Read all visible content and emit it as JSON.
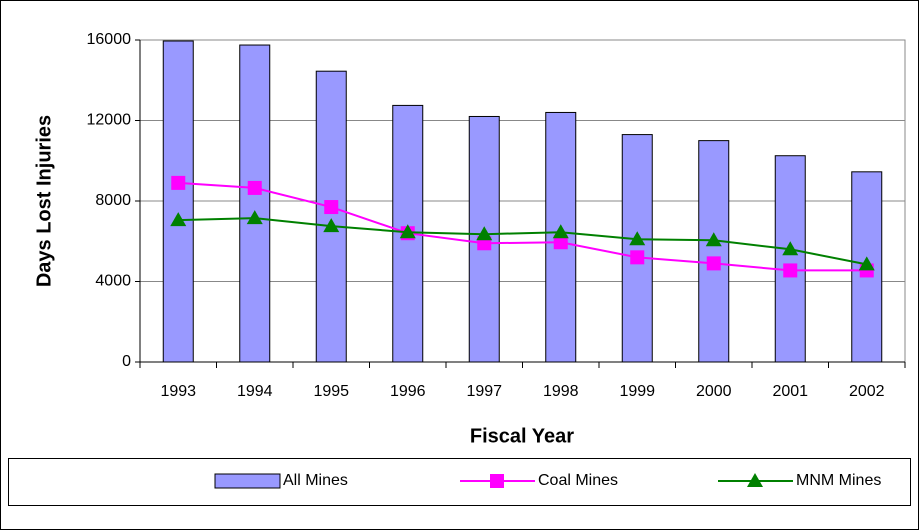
{
  "chart_data": {
    "type": "bar",
    "y_label": "Days Lost Injuries",
    "x_label": "Fiscal Year",
    "categories": [
      "1993",
      "1994",
      "1995",
      "1996",
      "1997",
      "1998",
      "1999",
      "2000",
      "2001",
      "2002"
    ],
    "series": [
      {
        "name": "All Mines",
        "type": "bar",
        "color": "#9999ff",
        "values": [
          15950,
          15750,
          14450,
          12750,
          12200,
          12400,
          11300,
          11000,
          10250,
          9450
        ]
      },
      {
        "name": "Coal Mines",
        "type": "line",
        "marker": "square",
        "color": "#ff00ff",
        "values": [
          8900,
          8650,
          7700,
          6400,
          5900,
          5950,
          5200,
          4900,
          4550,
          4550
        ]
      },
      {
        "name": "MNM Mines",
        "type": "line",
        "marker": "triangle",
        "color": "#008000",
        "values": [
          7050,
          7150,
          6750,
          6450,
          6350,
          6450,
          6100,
          6050,
          5600,
          4850
        ]
      }
    ],
    "ylim": [
      0,
      16000
    ],
    "yticks": [
      0,
      4000,
      8000,
      12000,
      16000
    ],
    "grid": true,
    "legend": "bottom"
  }
}
